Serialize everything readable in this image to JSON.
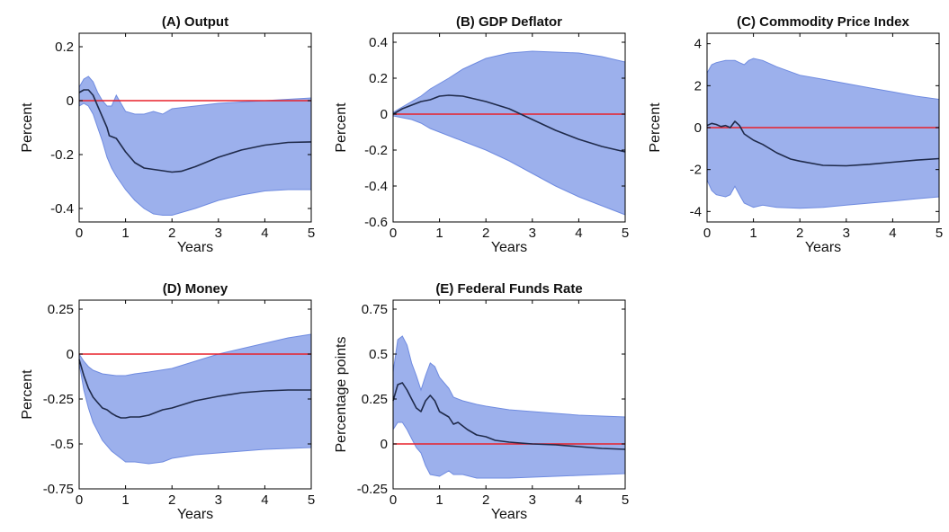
{
  "colors": {
    "band": "#7b95e6",
    "band_edge": "#6f8be0",
    "line": "#1f2a4a",
    "zero": "#e8202a",
    "axis": "#000000"
  },
  "chart_data": [
    {
      "type": "area",
      "title": "(A) Output",
      "xlabel": "Years",
      "ylabel": "Percent",
      "xlim": [
        0,
        5
      ],
      "ylim": [
        -0.45,
        0.25
      ],
      "xticks": [
        0,
        1,
        2,
        3,
        4,
        5
      ],
      "xtick_labels": [
        "0",
        "1",
        "2",
        "3",
        "4",
        "5"
      ],
      "yticks": [
        0.2,
        0,
        -0.2,
        -0.4
      ],
      "ytick_labels": [
        "0.2",
        "0",
        "-0.2",
        "-0.4"
      ],
      "zero_line": 0,
      "median": [
        [
          0,
          0.03
        ],
        [
          0.1,
          0.04
        ],
        [
          0.2,
          0.04
        ],
        [
          0.3,
          0.02
        ],
        [
          0.4,
          -0.02
        ],
        [
          0.5,
          -0.06
        ],
        [
          0.6,
          -0.1
        ],
        [
          0.65,
          -0.13
        ],
        [
          0.8,
          -0.14
        ],
        [
          1.0,
          -0.19
        ],
        [
          1.2,
          -0.23
        ],
        [
          1.4,
          -0.25
        ],
        [
          1.6,
          -0.255
        ],
        [
          1.8,
          -0.26
        ],
        [
          2.0,
          -0.265
        ],
        [
          2.2,
          -0.262
        ],
        [
          2.5,
          -0.245
        ],
        [
          3.0,
          -0.21
        ],
        [
          3.5,
          -0.183
        ],
        [
          4.0,
          -0.165
        ],
        [
          4.5,
          -0.155
        ],
        [
          5.0,
          -0.153
        ]
      ],
      "upper": [
        [
          0,
          0.05
        ],
        [
          0.1,
          0.08
        ],
        [
          0.2,
          0.09
        ],
        [
          0.3,
          0.07
        ],
        [
          0.4,
          0.03
        ],
        [
          0.5,
          0.0
        ],
        [
          0.6,
          -0.02
        ],
        [
          0.7,
          -0.02
        ],
        [
          0.8,
          0.02
        ],
        [
          0.9,
          -0.01
        ],
        [
          1.0,
          -0.04
        ],
        [
          1.2,
          -0.05
        ],
        [
          1.4,
          -0.05
        ],
        [
          1.6,
          -0.04
        ],
        [
          1.8,
          -0.05
        ],
        [
          2.0,
          -0.03
        ],
        [
          2.5,
          -0.02
        ],
        [
          3.0,
          -0.01
        ],
        [
          3.5,
          -0.005
        ],
        [
          4.0,
          0.0
        ],
        [
          4.5,
          0.005
        ],
        [
          5.0,
          0.01
        ]
      ],
      "lower": [
        [
          0,
          -0.02
        ],
        [
          0.1,
          -0.01
        ],
        [
          0.2,
          -0.02
        ],
        [
          0.3,
          -0.05
        ],
        [
          0.4,
          -0.1
        ],
        [
          0.5,
          -0.15
        ],
        [
          0.6,
          -0.21
        ],
        [
          0.7,
          -0.25
        ],
        [
          0.8,
          -0.28
        ],
        [
          1.0,
          -0.33
        ],
        [
          1.2,
          -0.37
        ],
        [
          1.4,
          -0.4
        ],
        [
          1.6,
          -0.42
        ],
        [
          1.8,
          -0.425
        ],
        [
          2.0,
          -0.425
        ],
        [
          2.2,
          -0.415
        ],
        [
          2.5,
          -0.4
        ],
        [
          3.0,
          -0.37
        ],
        [
          3.5,
          -0.35
        ],
        [
          4.0,
          -0.335
        ],
        [
          4.5,
          -0.33
        ],
        [
          5.0,
          -0.33
        ]
      ]
    },
    {
      "type": "area",
      "title": "(B) GDP Deflator",
      "xlabel": "Years",
      "ylabel": "Percent",
      "xlim": [
        0,
        5
      ],
      "ylim": [
        -0.6,
        0.45
      ],
      "xticks": [
        0,
        1,
        2,
        3,
        4,
        5
      ],
      "xtick_labels": [
        "0",
        "1",
        "2",
        "3",
        "4",
        "5"
      ],
      "yticks": [
        0.4,
        0.2,
        0,
        -0.2,
        -0.4,
        -0.6
      ],
      "ytick_labels": [
        "0.4",
        "0.2",
        "0",
        "-0.2",
        "-0.4",
        "-0.6"
      ],
      "zero_line": 0,
      "median": [
        [
          0,
          0.0
        ],
        [
          0.2,
          0.03
        ],
        [
          0.4,
          0.05
        ],
        [
          0.6,
          0.07
        ],
        [
          0.8,
          0.08
        ],
        [
          1.0,
          0.1
        ],
        [
          1.2,
          0.105
        ],
        [
          1.5,
          0.1
        ],
        [
          2.0,
          0.07
        ],
        [
          2.5,
          0.03
        ],
        [
          3.0,
          -0.03
        ],
        [
          3.5,
          -0.09
        ],
        [
          4.0,
          -0.14
        ],
        [
          4.5,
          -0.18
        ],
        [
          5.0,
          -0.21
        ]
      ],
      "upper": [
        [
          0,
          0.01
        ],
        [
          0.2,
          0.04
        ],
        [
          0.4,
          0.07
        ],
        [
          0.6,
          0.1
        ],
        [
          0.8,
          0.14
        ],
        [
          1.0,
          0.17
        ],
        [
          1.2,
          0.2
        ],
        [
          1.5,
          0.25
        ],
        [
          2.0,
          0.31
        ],
        [
          2.5,
          0.34
        ],
        [
          3.0,
          0.35
        ],
        [
          3.5,
          0.345
        ],
        [
          4.0,
          0.34
        ],
        [
          4.5,
          0.32
        ],
        [
          5.0,
          0.29
        ]
      ],
      "lower": [
        [
          0,
          -0.01
        ],
        [
          0.2,
          -0.02
        ],
        [
          0.4,
          -0.03
        ],
        [
          0.6,
          -0.05
        ],
        [
          0.8,
          -0.08
        ],
        [
          1.0,
          -0.1
        ],
        [
          1.2,
          -0.12
        ],
        [
          1.5,
          -0.15
        ],
        [
          2.0,
          -0.2
        ],
        [
          2.5,
          -0.26
        ],
        [
          3.0,
          -0.33
        ],
        [
          3.5,
          -0.4
        ],
        [
          4.0,
          -0.46
        ],
        [
          4.5,
          -0.51
        ],
        [
          5.0,
          -0.56
        ]
      ]
    },
    {
      "type": "area",
      "title": "(C) Commodity Price Index",
      "xlabel": "Years",
      "ylabel": "Percent",
      "xlim": [
        0,
        5
      ],
      "ylim": [
        -4.5,
        4.5
      ],
      "xticks": [
        0,
        1,
        2,
        3,
        4,
        5
      ],
      "xtick_labels": [
        "0",
        "1",
        "2",
        "3",
        "4",
        "5"
      ],
      "yticks": [
        4,
        2,
        0,
        -2,
        -4
      ],
      "ytick_labels": [
        "4",
        "2",
        "0",
        "-2",
        "-4"
      ],
      "zero_line": 0,
      "median": [
        [
          0,
          0.1
        ],
        [
          0.1,
          0.2
        ],
        [
          0.2,
          0.15
        ],
        [
          0.3,
          0.05
        ],
        [
          0.4,
          0.1
        ],
        [
          0.5,
          0.0
        ],
        [
          0.6,
          0.3
        ],
        [
          0.7,
          0.1
        ],
        [
          0.8,
          -0.3
        ],
        [
          1.0,
          -0.6
        ],
        [
          1.2,
          -0.8
        ],
        [
          1.5,
          -1.2
        ],
        [
          1.8,
          -1.5
        ],
        [
          2.0,
          -1.6
        ],
        [
          2.5,
          -1.8
        ],
        [
          3.0,
          -1.82
        ],
        [
          3.5,
          -1.75
        ],
        [
          4.0,
          -1.65
        ],
        [
          4.5,
          -1.55
        ],
        [
          5.0,
          -1.48
        ]
      ],
      "upper": [
        [
          0,
          2.6
        ],
        [
          0.1,
          3.0
        ],
        [
          0.2,
          3.1
        ],
        [
          0.4,
          3.2
        ],
        [
          0.6,
          3.2
        ],
        [
          0.7,
          3.1
        ],
        [
          0.8,
          3.0
        ],
        [
          0.9,
          3.2
        ],
        [
          1.0,
          3.3
        ],
        [
          1.2,
          3.2
        ],
        [
          1.5,
          2.9
        ],
        [
          2.0,
          2.5
        ],
        [
          2.5,
          2.3
        ],
        [
          3.0,
          2.1
        ],
        [
          3.5,
          1.9
        ],
        [
          4.0,
          1.7
        ],
        [
          4.5,
          1.5
        ],
        [
          5.0,
          1.35
        ]
      ],
      "lower": [
        [
          0,
          -2.5
        ],
        [
          0.1,
          -3.0
        ],
        [
          0.2,
          -3.2
        ],
        [
          0.4,
          -3.3
        ],
        [
          0.5,
          -3.2
        ],
        [
          0.6,
          -2.8
        ],
        [
          0.7,
          -3.2
        ],
        [
          0.8,
          -3.6
        ],
        [
          1.0,
          -3.8
        ],
        [
          1.2,
          -3.7
        ],
        [
          1.5,
          -3.8
        ],
        [
          2.0,
          -3.85
        ],
        [
          2.5,
          -3.8
        ],
        [
          3.0,
          -3.7
        ],
        [
          3.5,
          -3.6
        ],
        [
          4.0,
          -3.5
        ],
        [
          4.5,
          -3.4
        ],
        [
          5.0,
          -3.3
        ]
      ]
    },
    {
      "type": "area",
      "title": "(D) Money",
      "xlabel": "Years",
      "ylabel": "Percent",
      "xlim": [
        0,
        5
      ],
      "ylim": [
        -0.75,
        0.3
      ],
      "xticks": [
        0,
        1,
        2,
        3,
        4,
        5
      ],
      "xtick_labels": [
        "0",
        "1",
        "2",
        "3",
        "4",
        "5"
      ],
      "yticks": [
        0.25,
        0,
        -0.25,
        -0.5,
        -0.75
      ],
      "ytick_labels": [
        "0.25",
        "0",
        "-0.25",
        "-0.5",
        "-0.75"
      ],
      "zero_line": 0,
      "median": [
        [
          0,
          -0.03
        ],
        [
          0.1,
          -0.12
        ],
        [
          0.2,
          -0.19
        ],
        [
          0.3,
          -0.24
        ],
        [
          0.4,
          -0.27
        ],
        [
          0.5,
          -0.3
        ],
        [
          0.6,
          -0.31
        ],
        [
          0.7,
          -0.33
        ],
        [
          0.8,
          -0.345
        ],
        [
          0.9,
          -0.355
        ],
        [
          1.0,
          -0.355
        ],
        [
          1.1,
          -0.35
        ],
        [
          1.3,
          -0.35
        ],
        [
          1.5,
          -0.34
        ],
        [
          1.8,
          -0.31
        ],
        [
          2.0,
          -0.3
        ],
        [
          2.5,
          -0.26
        ],
        [
          3.0,
          -0.235
        ],
        [
          3.5,
          -0.215
        ],
        [
          4.0,
          -0.205
        ],
        [
          4.5,
          -0.2
        ],
        [
          5.0,
          -0.2
        ]
      ],
      "upper": [
        [
          0,
          0.0
        ],
        [
          0.1,
          -0.04
        ],
        [
          0.2,
          -0.07
        ],
        [
          0.3,
          -0.09
        ],
        [
          0.5,
          -0.11
        ],
        [
          0.8,
          -0.12
        ],
        [
          1.0,
          -0.12
        ],
        [
          1.2,
          -0.11
        ],
        [
          1.5,
          -0.1
        ],
        [
          2.0,
          -0.08
        ],
        [
          2.5,
          -0.04
        ],
        [
          3.0,
          0.0
        ],
        [
          3.5,
          0.03
        ],
        [
          4.0,
          0.06
        ],
        [
          4.5,
          0.09
        ],
        [
          5.0,
          0.11
        ]
      ],
      "lower": [
        [
          0,
          -0.05
        ],
        [
          0.1,
          -0.2
        ],
        [
          0.2,
          -0.3
        ],
        [
          0.3,
          -0.38
        ],
        [
          0.5,
          -0.48
        ],
        [
          0.7,
          -0.54
        ],
        [
          0.9,
          -0.58
        ],
        [
          1.0,
          -0.6
        ],
        [
          1.2,
          -0.6
        ],
        [
          1.5,
          -0.61
        ],
        [
          1.8,
          -0.6
        ],
        [
          2.0,
          -0.58
        ],
        [
          2.5,
          -0.56
        ],
        [
          3.0,
          -0.55
        ],
        [
          3.5,
          -0.54
        ],
        [
          4.0,
          -0.53
        ],
        [
          4.5,
          -0.525
        ],
        [
          5.0,
          -0.52
        ]
      ]
    },
    {
      "type": "area",
      "title": "(E) Federal Funds Rate",
      "xlabel": "Years",
      "ylabel": "Percentage points",
      "xlim": [
        0,
        5
      ],
      "ylim": [
        -0.25,
        0.8
      ],
      "xticks": [
        0,
        1,
        2,
        3,
        4,
        5
      ],
      "xtick_labels": [
        "0",
        "1",
        "2",
        "3",
        "4",
        "5"
      ],
      "yticks": [
        0.75,
        0.5,
        0.25,
        0,
        -0.25
      ],
      "ytick_labels": [
        "0.75",
        "0.5",
        "0.25",
        "0",
        "-0.25"
      ],
      "zero_line": 0,
      "median": [
        [
          0,
          0.24
        ],
        [
          0.1,
          0.33
        ],
        [
          0.2,
          0.34
        ],
        [
          0.3,
          0.3
        ],
        [
          0.4,
          0.25
        ],
        [
          0.5,
          0.2
        ],
        [
          0.6,
          0.18
        ],
        [
          0.7,
          0.24
        ],
        [
          0.8,
          0.27
        ],
        [
          0.9,
          0.24
        ],
        [
          1.0,
          0.18
        ],
        [
          1.2,
          0.15
        ],
        [
          1.3,
          0.11
        ],
        [
          1.4,
          0.12
        ],
        [
          1.6,
          0.08
        ],
        [
          1.8,
          0.05
        ],
        [
          2.0,
          0.04
        ],
        [
          2.2,
          0.02
        ],
        [
          2.5,
          0.01
        ],
        [
          3.0,
          0.0
        ],
        [
          3.5,
          -0.005
        ],
        [
          4.0,
          -0.015
        ],
        [
          4.5,
          -0.025
        ],
        [
          5.0,
          -0.03
        ]
      ],
      "upper": [
        [
          0,
          0.4
        ],
        [
          0.1,
          0.58
        ],
        [
          0.2,
          0.6
        ],
        [
          0.3,
          0.55
        ],
        [
          0.4,
          0.45
        ],
        [
          0.5,
          0.38
        ],
        [
          0.6,
          0.3
        ],
        [
          0.7,
          0.38
        ],
        [
          0.8,
          0.45
        ],
        [
          0.9,
          0.43
        ],
        [
          1.0,
          0.37
        ],
        [
          1.2,
          0.31
        ],
        [
          1.3,
          0.26
        ],
        [
          1.5,
          0.24
        ],
        [
          1.8,
          0.22
        ],
        [
          2.0,
          0.21
        ],
        [
          2.5,
          0.19
        ],
        [
          3.0,
          0.18
        ],
        [
          3.5,
          0.17
        ],
        [
          4.0,
          0.16
        ],
        [
          4.5,
          0.155
        ],
        [
          5.0,
          0.15
        ]
      ],
      "lower": [
        [
          0,
          0.08
        ],
        [
          0.1,
          0.12
        ],
        [
          0.2,
          0.12
        ],
        [
          0.3,
          0.08
        ],
        [
          0.4,
          0.03
        ],
        [
          0.5,
          -0.02
        ],
        [
          0.6,
          -0.05
        ],
        [
          0.7,
          -0.12
        ],
        [
          0.8,
          -0.17
        ],
        [
          1.0,
          -0.18
        ],
        [
          1.2,
          -0.15
        ],
        [
          1.3,
          -0.17
        ],
        [
          1.5,
          -0.17
        ],
        [
          1.8,
          -0.19
        ],
        [
          2.0,
          -0.19
        ],
        [
          2.5,
          -0.19
        ],
        [
          3.0,
          -0.185
        ],
        [
          3.5,
          -0.18
        ],
        [
          4.0,
          -0.175
        ],
        [
          4.5,
          -0.17
        ],
        [
          5.0,
          -0.165
        ]
      ]
    }
  ]
}
